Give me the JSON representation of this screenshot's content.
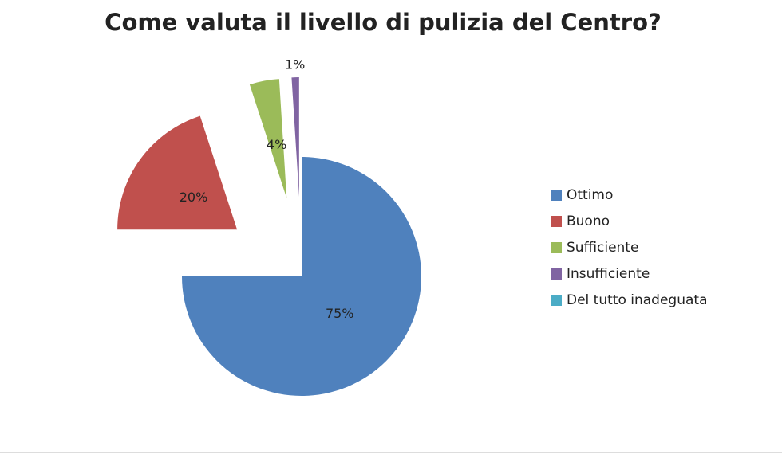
{
  "chart_data": {
    "type": "pie",
    "title": "Come valuta il livello di pulizia del Centro?",
    "categories": [
      "Ottimo",
      "Buono",
      "Sufficiente",
      "Insufficiente",
      "Del tutto inadeguata"
    ],
    "values": [
      75,
      20,
      4,
      1,
      0
    ],
    "value_labels": [
      "75%",
      "20%",
      "4%",
      "1%",
      null
    ],
    "colors": [
      "#4f81bd",
      "#c0504d",
      "#9bbb59",
      "#8064a2",
      "#4bacc6"
    ],
    "legend": "right"
  }
}
